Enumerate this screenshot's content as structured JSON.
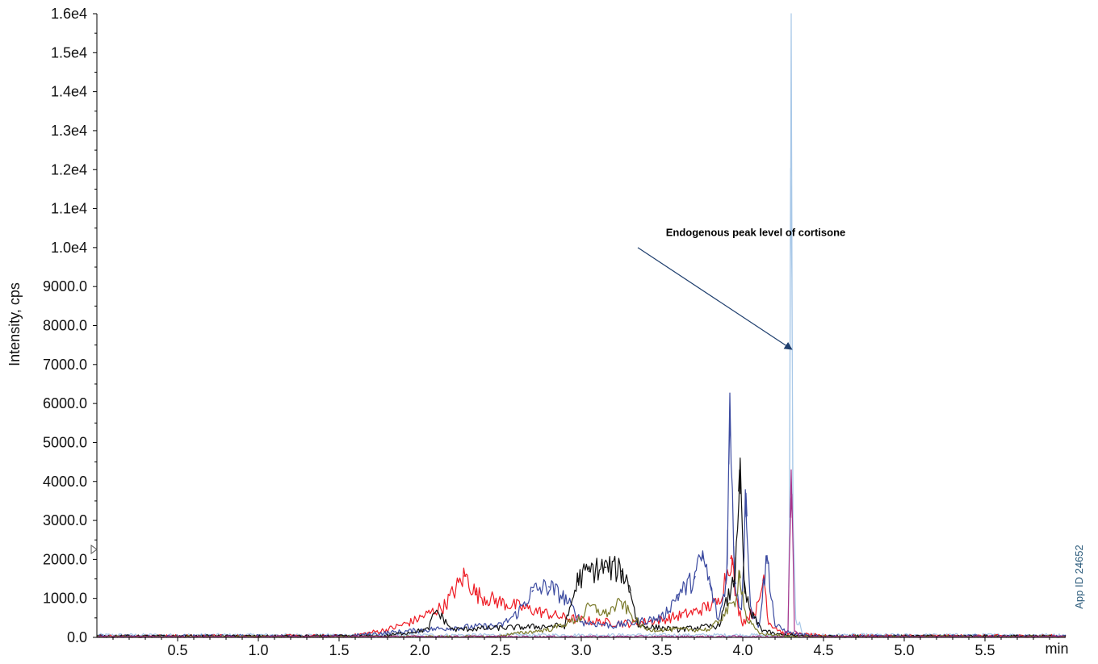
{
  "chart_data": {
    "type": "line",
    "title": "",
    "xlabel": "min",
    "ylabel": "Intensity, cps",
    "xlim": [
      0,
      6.0
    ],
    "ylim": [
      0,
      16000
    ],
    "grid": false,
    "x_ticks": [
      0.5,
      1.0,
      1.5,
      2.0,
      2.5,
      3.0,
      3.5,
      4.0,
      4.5,
      5.0,
      5.5
    ],
    "x_tick_labels": [
      "0.5",
      "1.0",
      "1.5",
      "2.0",
      "2.5",
      "3.0",
      "3.5",
      "4.0",
      "4.5",
      "5.0",
      "5.5"
    ],
    "y_ticks": [
      0,
      1000,
      2000,
      3000,
      4000,
      5000,
      6000,
      7000,
      8000,
      9000,
      10000,
      11000,
      12000,
      13000,
      14000,
      15000,
      16000
    ],
    "y_tick_labels": [
      "0.0",
      "1000.0",
      "2000.0",
      "3000.0",
      "4000.0",
      "5000.0",
      "6000.0",
      "7000.0",
      "8000.0",
      "9000.0",
      "1.0e4",
      "1.1e4",
      "1.2e4",
      "1.3e4",
      "1.4e4",
      "1.5e4",
      "1.6e4"
    ],
    "annotation": {
      "text": "Endogenous peak level of cortisone",
      "text_x": 4.08,
      "text_y": 10300,
      "arrow_from": [
        3.35,
        10000
      ],
      "arrow_to": [
        4.3,
        7400
      ]
    },
    "series": [
      {
        "color": "#a8c8e8",
        "baseline": 60,
        "noise": 30,
        "points": [
          [
            4.28,
            120
          ],
          [
            4.29,
            3000
          ],
          [
            4.3,
            16000
          ],
          [
            4.31,
            3000
          ],
          [
            4.33,
            300
          ],
          [
            4.35,
            350
          ],
          [
            4.37,
            100
          ]
        ]
      },
      {
        "color": "#ee1c25",
        "baseline": 30,
        "noise": 40,
        "points": [
          [
            1.6,
            50
          ],
          [
            1.8,
            200
          ],
          [
            1.95,
            400
          ],
          [
            2.05,
            600
          ],
          [
            2.15,
            800
          ],
          [
            2.28,
            1600
          ],
          [
            2.35,
            1100
          ],
          [
            2.5,
            900
          ],
          [
            2.7,
            700
          ],
          [
            2.9,
            500
          ],
          [
            3.1,
            400
          ],
          [
            3.3,
            350
          ],
          [
            3.5,
            450
          ],
          [
            3.7,
            650
          ],
          [
            3.85,
            900
          ],
          [
            3.93,
            2100
          ],
          [
            3.96,
            900
          ],
          [
            4.0,
            400
          ],
          [
            4.1,
            800
          ],
          [
            4.13,
            1600
          ],
          [
            4.16,
            400
          ],
          [
            4.25,
            100
          ],
          [
            4.45,
            50
          ]
        ]
      },
      {
        "color": "#3b4aa0",
        "baseline": 30,
        "noise": 35,
        "points": [
          [
            1.6,
            50
          ],
          [
            1.9,
            150
          ],
          [
            2.2,
            250
          ],
          [
            2.5,
            300
          ],
          [
            2.6,
            600
          ],
          [
            2.7,
            1200
          ],
          [
            2.8,
            1300
          ],
          [
            2.9,
            1000
          ],
          [
            3.0,
            400
          ],
          [
            3.2,
            300
          ],
          [
            3.5,
            500
          ],
          [
            3.6,
            1100
          ],
          [
            3.7,
            1500
          ],
          [
            3.75,
            2100
          ],
          [
            3.8,
            1300
          ],
          [
            3.85,
            400
          ],
          [
            3.9,
            1500
          ],
          [
            3.92,
            5700
          ],
          [
            3.95,
            1500
          ],
          [
            3.99,
            600
          ],
          [
            4.02,
            3700
          ],
          [
            4.05,
            700
          ],
          [
            4.1,
            300
          ],
          [
            4.15,
            2100
          ],
          [
            4.2,
            300
          ],
          [
            4.3,
            100
          ],
          [
            4.4,
            50
          ]
        ]
      },
      {
        "color": "#111111",
        "baseline": 30,
        "noise": 30,
        "points": [
          [
            1.8,
            50
          ],
          [
            2.05,
            200
          ],
          [
            2.1,
            700
          ],
          [
            2.2,
            200
          ],
          [
            2.9,
            300
          ],
          [
            2.98,
            1500
          ],
          [
            3.05,
            1700
          ],
          [
            3.15,
            1800
          ],
          [
            3.25,
            1700
          ],
          [
            3.3,
            1300
          ],
          [
            3.35,
            300
          ],
          [
            3.6,
            200
          ],
          [
            3.85,
            300
          ],
          [
            3.95,
            1500
          ],
          [
            3.98,
            4300
          ],
          [
            4.01,
            1200
          ],
          [
            4.05,
            600
          ],
          [
            4.12,
            200
          ],
          [
            4.2,
            80
          ],
          [
            4.35,
            40
          ]
        ]
      },
      {
        "color": "#7a7a2a",
        "baseline": 20,
        "noise": 25,
        "points": [
          [
            2.5,
            50
          ],
          [
            2.8,
            200
          ],
          [
            3.0,
            500
          ],
          [
            3.05,
            800
          ],
          [
            3.15,
            600
          ],
          [
            3.25,
            900
          ],
          [
            3.32,
            500
          ],
          [
            3.4,
            200
          ],
          [
            3.8,
            200
          ],
          [
            3.95,
            900
          ],
          [
            3.98,
            1700
          ],
          [
            4.02,
            500
          ],
          [
            4.1,
            100
          ],
          [
            4.25,
            40
          ]
        ]
      },
      {
        "color": "#a8328a",
        "baseline": 20,
        "noise": 20,
        "points": [
          [
            4.25,
            40
          ],
          [
            4.28,
            200
          ],
          [
            4.3,
            4300
          ],
          [
            4.32,
            200
          ],
          [
            4.35,
            40
          ]
        ]
      }
    ]
  },
  "side_label": "App ID 24652"
}
